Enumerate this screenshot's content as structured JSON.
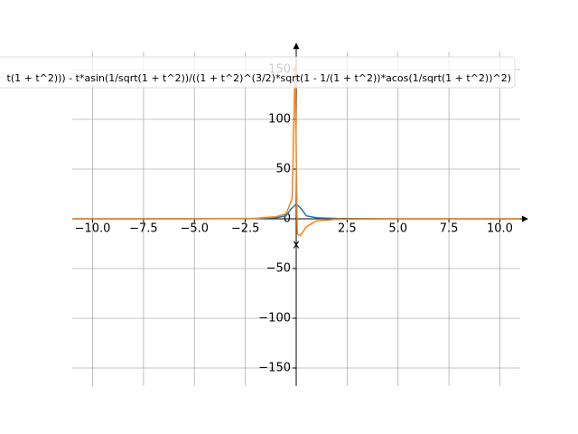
{
  "chart_data": {
    "type": "line",
    "xlabel": "x",
    "xlim": [
      -11,
      11
    ],
    "ylim": [
      -168,
      168
    ],
    "xticks": [
      {
        "value": -10,
        "label": "−10.0"
      },
      {
        "value": -7.5,
        "label": "−7.5"
      },
      {
        "value": -5,
        "label": "−5.0"
      },
      {
        "value": -2.5,
        "label": "−2.5"
      },
      {
        "value": 2.5,
        "label": "2.5"
      },
      {
        "value": 5,
        "label": "5.0"
      },
      {
        "value": 7.5,
        "label": "7.5"
      },
      {
        "value": 10,
        "label": "10.0"
      }
    ],
    "yticks": [
      {
        "value": -150,
        "label": "−150"
      },
      {
        "value": -100,
        "label": "−100"
      },
      {
        "value": -50,
        "label": "−50"
      },
      0,
      50,
      100,
      150
    ],
    "grid": true,
    "series": [
      {
        "color": "#1f77b4",
        "x": [
          -11,
          -5,
          -2,
          -1,
          -0.5,
          -0.25,
          0,
          0.25,
          0.5,
          1,
          2,
          5,
          11
        ],
        "values": [
          0,
          0,
          0.3,
          1,
          3,
          10,
          15,
          10,
          3,
          1,
          0.3,
          0,
          0
        ]
      },
      {
        "name": "t(1 + t^2))) - t*asin(1/sqrt(1 + t^2))/((1 + t^2)^(3/2)*sqrt(1 - 1/(1 + t^2))*acos(1/sqrt(1 + t^2))^2)",
        "color": "#ff7f0e",
        "x": [
          -11,
          -5,
          -2,
          -1,
          -0.5,
          -0.2,
          -0.05,
          0.05,
          0.2,
          0.5,
          1,
          2,
          5,
          11
        ],
        "values": [
          0,
          0.1,
          0.5,
          2,
          5,
          20,
          155,
          -15,
          -17,
          -8,
          -2,
          -0.5,
          0,
          0
        ]
      }
    ]
  }
}
